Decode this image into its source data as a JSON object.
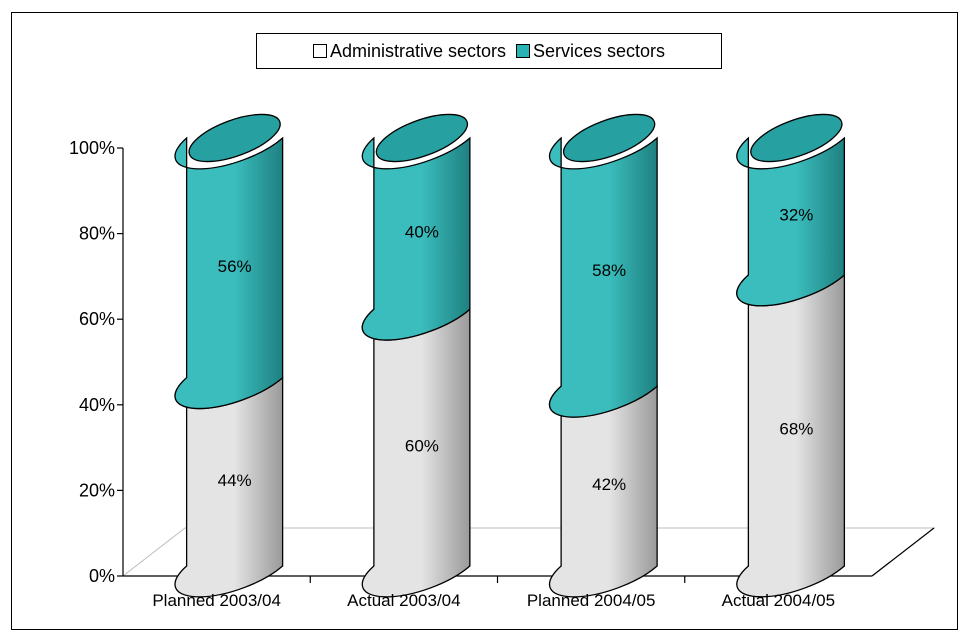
{
  "colors": {
    "admin_front": "#e4e4e4",
    "admin_side": "#9a9a9a",
    "services_front": "#3bbdbd",
    "services_side": "#1f8080",
    "services_top": "#26a0a0",
    "outline": "#000000"
  },
  "legend": {
    "position": "top",
    "items": [
      {
        "label": "Administrative sectors",
        "color": "#ffffff"
      },
      {
        "label": "Services sectors",
        "color": "#2ab3b3"
      }
    ]
  },
  "chart_data": {
    "type": "bar",
    "subtype": "stacked-100-cylinder-3d",
    "categories": [
      "Planned 2003/04",
      "Actual 2003/04",
      "Planned 2004/05",
      "Actual 2004/05"
    ],
    "series": [
      {
        "name": "Administrative sectors",
        "values": [
          44,
          60,
          42,
          68
        ],
        "labels": [
          "44%",
          "60%",
          "42%",
          "68%"
        ]
      },
      {
        "name": "Services sectors",
        "values": [
          56,
          40,
          58,
          32
        ],
        "labels": [
          "56%",
          "40%",
          "58%",
          "32%"
        ]
      }
    ],
    "yticks": [
      "0%",
      "20%",
      "40%",
      "60%",
      "80%",
      "100%"
    ],
    "ylim": [
      0,
      100
    ],
    "grid": false
  }
}
